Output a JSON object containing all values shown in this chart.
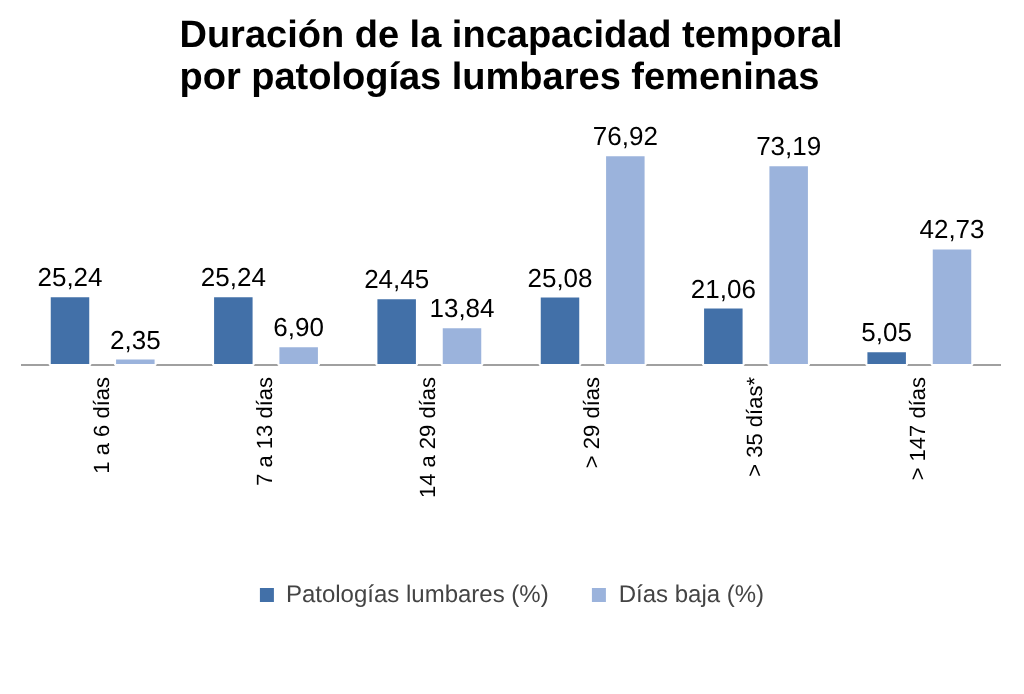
{
  "chart_data": {
    "type": "bar",
    "title": "Duración de la incapacidad temporal\npor patologías lumbares femeninas",
    "categories": [
      "1 a 6 días",
      "7 a 13 días",
      "14 a 29 días",
      "> 29 días",
      "> 35 días*",
      "> 147 días"
    ],
    "series": [
      {
        "name": "Patologías lumbares (%)",
        "color": "#4270a8",
        "values": [
          25.24,
          25.24,
          24.45,
          25.08,
          21.06,
          5.05
        ],
        "value_labels": [
          "25,24",
          "25,24",
          "24,45",
          "25,08",
          "21,06",
          "5,05"
        ]
      },
      {
        "name": "Días baja (%)",
        "color": "#9bb3dc",
        "values": [
          2.35,
          6.9,
          13.84,
          76.92,
          73.19,
          42.73
        ],
        "value_labels": [
          "2,35",
          "6,90",
          "13,84",
          "76,92",
          "73,19",
          "42,73"
        ]
      }
    ],
    "legend": "bottom"
  }
}
